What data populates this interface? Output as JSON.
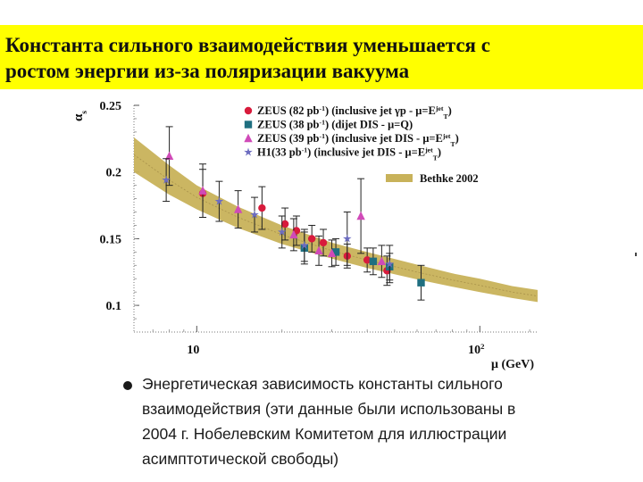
{
  "title": {
    "line1": "Константа сильного взаимодействия уменьшается с",
    "line2": "ростом энергии из-за поляризации вакуума"
  },
  "chart_data": {
    "type": "scatter",
    "xscale": "log",
    "xlim": [
      6,
      160
    ],
    "ylim": [
      0.08,
      0.25
    ],
    "xlabel": "μ (GeV)",
    "ylabel": "α",
    "ylabel_subscript": "s",
    "x_ticks": [
      {
        "value": 10,
        "label": "10"
      },
      {
        "value": 100,
        "label": "10",
        "sup": "2"
      }
    ],
    "y_ticks": [
      {
        "value": 0.1,
        "label": "0.1"
      },
      {
        "value": 0.15,
        "label": "0.15"
      },
      {
        "value": 0.2,
        "label": "0.2"
      },
      {
        "value": 0.25,
        "label": "0.25"
      }
    ],
    "band": {
      "name": "Bethke 2002",
      "color": "#c8b25a",
      "x": [
        6,
        8,
        10,
        14,
        20,
        30,
        40,
        60,
        80,
        100,
        130,
        160
      ],
      "center": [
        0.213,
        0.194,
        0.181,
        0.166,
        0.153,
        0.141,
        0.134,
        0.125,
        0.119,
        0.115,
        0.11,
        0.107
      ],
      "halfwidth": [
        0.013,
        0.011,
        0.009,
        0.008,
        0.007,
        0.006,
        0.006,
        0.0055,
        0.005,
        0.005,
        0.0045,
        0.0045
      ]
    },
    "legend_position": "top-right",
    "series": [
      {
        "label1": "ZEUS (82 pb",
        "sup1": "-1",
        "label2": ") (inclusive jet γp - μ=E",
        "sup2": "jet",
        "sub2": "T",
        "label3": ")",
        "marker": "circle",
        "color": "#d81b3c",
        "x": [
          10.5,
          17,
          20.5,
          22.5,
          25.5,
          28,
          34,
          40,
          47
        ],
        "y": [
          0.184,
          0.173,
          0.161,
          0.156,
          0.15,
          0.147,
          0.137,
          0.134,
          0.126
        ],
        "err": [
          0.018,
          0.016,
          0.012,
          0.011,
          0.01,
          0.01,
          0.009,
          0.009,
          0.011
        ]
      },
      {
        "label1": "ZEUS (38 pb",
        "sup1": "-1",
        "label2": ") (dijet DIS - μ=Q)",
        "sup2": "",
        "sub2": "",
        "label3": "",
        "marker": "square",
        "color": "#1f6f80",
        "x": [
          24,
          31,
          42,
          48,
          62
        ],
        "y": [
          0.143,
          0.14,
          0.133,
          0.129,
          0.117
        ],
        "err": [
          0.012,
          0.01,
          0.01,
          0.01,
          0.013
        ]
      },
      {
        "label1": "ZEUS (39 pb",
        "sup1": "-1",
        "label2": ") (inclusive jet DIS - μ=E",
        "sup2": "jet",
        "sub2": "T",
        "label3": ")",
        "marker": "triangle",
        "color": "#d04ab8",
        "x": [
          8,
          10.5,
          14,
          22,
          27,
          30,
          38,
          45
        ],
        "y": [
          0.212,
          0.186,
          0.172,
          0.153,
          0.141,
          0.139,
          0.167,
          0.133
        ],
        "err": [
          0.022,
          0.02,
          0.014,
          0.012,
          0.011,
          0.01,
          0.028,
          0.012
        ]
      },
      {
        "label1": "H1",
        "sup1": "",
        "label2": "(33 pb",
        "sup2": "-1",
        "sub2": "",
        "label3": ") (inclusive jet DIS - μ=E",
        "sup3": "jet",
        "sub3": "T",
        "label4": ")",
        "marker": "star",
        "color": "#6c6cc0",
        "x": [
          7.8,
          12,
          16,
          20,
          24,
          34,
          48
        ],
        "y": [
          0.194,
          0.178,
          0.168,
          0.155,
          0.145,
          0.15,
          0.131
        ],
        "err": [
          0.016,
          0.015,
          0.013,
          0.012,
          0.012,
          0.02,
          0.014
        ]
      }
    ]
  },
  "caption": "Энергетическая зависимость константы сильного взаимодействия (эти данные были использованы в 2004 г. Нобелевским Комитетом для иллюстрации асимптотической свободы)"
}
